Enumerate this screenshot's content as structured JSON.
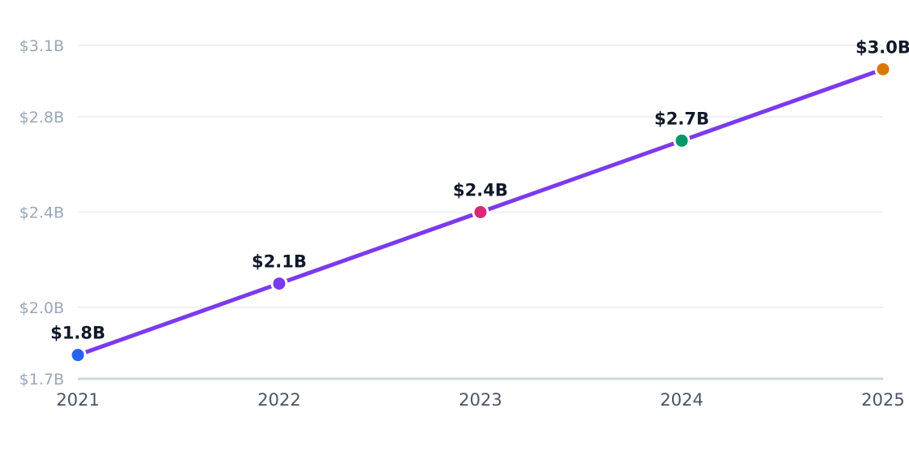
{
  "chart_data": {
    "type": "line",
    "categories": [
      "2021",
      "2022",
      "2023",
      "2024",
      "2025"
    ],
    "series": [
      {
        "values": [
          1.8,
          2.1,
          2.4,
          2.7,
          3.0
        ],
        "line_color": "#7c3aed",
        "point_colors": [
          "#2563eb",
          "#7c3aed",
          "#db2777",
          "#059669",
          "#d97706"
        ],
        "data_labels": [
          "$1.8B",
          "$2.1B",
          "$2.4B",
          "$2.7B",
          "$3.0B"
        ]
      }
    ],
    "ylim": [
      1.7,
      3.1
    ],
    "yticks": [
      {
        "value": 1.7,
        "label": "$1.7B"
      },
      {
        "value": 2.0,
        "label": "$2.0B"
      },
      {
        "value": 2.4,
        "label": "$2.4B"
      },
      {
        "value": 2.8,
        "label": "$2.8B"
      },
      {
        "value": 3.1,
        "label": "$3.1B"
      }
    ],
    "grid": true,
    "title": "",
    "xlabel": "",
    "ylabel": ""
  }
}
